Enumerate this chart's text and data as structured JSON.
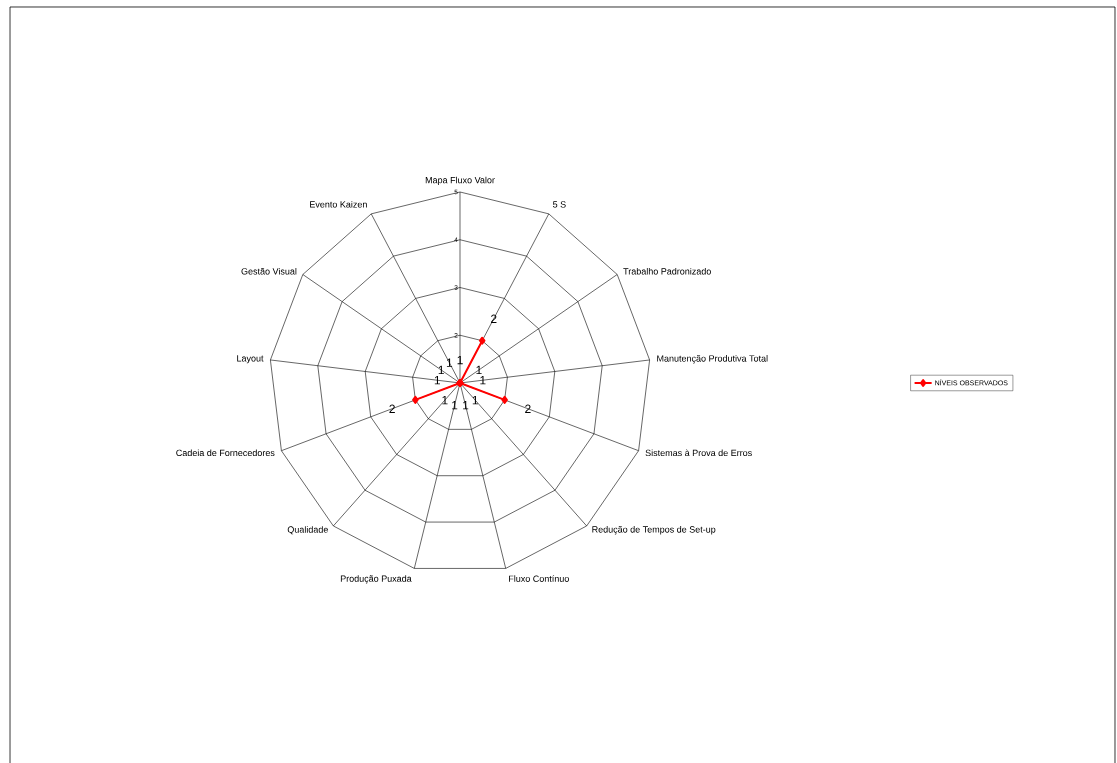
{
  "chart_data": {
    "type": "radar",
    "categories": [
      "Mapa Fluxo Valor",
      "5 S",
      "Trabalho Padronizado",
      "Manutenção Produtiva Total",
      "Sistemas à Prova de Erros",
      "Redução de Tempos de Set-up",
      "Fluxo Contínuo",
      "Produção Puxada",
      "Qualidade",
      "Cadeia de Fornecedores",
      "Layout",
      "Gestão Visual",
      "Evento Kaizen"
    ],
    "series": [
      {
        "name": "NÍVEIS OBSERVADOS",
        "color": "#ff0000",
        "values": [
          1,
          2,
          1,
          1,
          2,
          1,
          1,
          1,
          1,
          2,
          1,
          1,
          1
        ]
      }
    ],
    "ylim": [
      1,
      5
    ],
    "yticks": [
      2,
      3,
      4,
      5
    ],
    "grid": true,
    "data_labels": true,
    "marker": "diamond",
    "legend": "right"
  }
}
